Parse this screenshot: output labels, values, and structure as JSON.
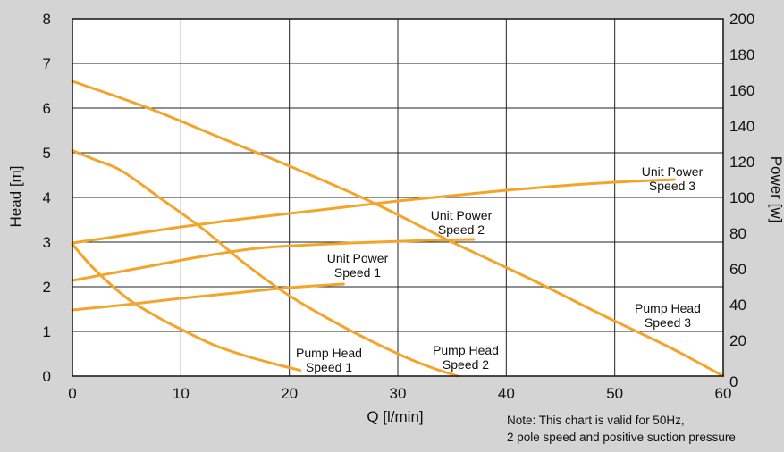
{
  "chart_data": {
    "type": "line",
    "xlabel": "Q [l/min]",
    "ylabel": "Head [m]",
    "y2label": "Power [w]",
    "xlim": [
      0,
      60
    ],
    "ylim": [
      0,
      8
    ],
    "y2lim": [
      0,
      200
    ],
    "x_ticks": [
      "0",
      "10",
      "20",
      "30",
      "40",
      "50",
      "60"
    ],
    "y_ticks": [
      "0",
      "1",
      "2",
      "3",
      "4",
      "5",
      "6",
      "7",
      "8"
    ],
    "y2_ticks": [
      "0",
      "20",
      "40",
      "60",
      "80",
      "100",
      "120",
      "140",
      "160",
      "180",
      "200"
    ],
    "grid": true,
    "line_color": "#f4a42b",
    "plot_background": "#ffffff",
    "series": [
      {
        "axis": "left",
        "label_lines": [
          "Pump Head",
          "Speed 1"
        ],
        "x": [
          0,
          2,
          5,
          8,
          10,
          13,
          16,
          19,
          21
        ],
        "y": [
          2.95,
          2.4,
          1.75,
          1.3,
          1.05,
          0.7,
          0.45,
          0.25,
          0.13
        ]
      },
      {
        "axis": "left",
        "label_lines": [
          "Pump Head",
          "Speed 2"
        ],
        "x": [
          0,
          2,
          4.5,
          8,
          12,
          16,
          20,
          25,
          30,
          33,
          35.5
        ],
        "y": [
          5.05,
          4.85,
          4.6,
          4.0,
          3.3,
          2.5,
          1.8,
          1.1,
          0.5,
          0.2,
          0.0
        ]
      },
      {
        "axis": "left",
        "label_lines": [
          "Pump Head",
          "Speed 3"
        ],
        "x": [
          0,
          7,
          14,
          21,
          28,
          35,
          42,
          49,
          55,
          60
        ],
        "y": [
          6.6,
          6.0,
          5.3,
          4.6,
          3.85,
          3.0,
          2.2,
          1.35,
          0.65,
          0.0
        ]
      },
      {
        "axis": "right",
        "label_lines": [
          "Unit Power",
          "Speed 1"
        ],
        "x": [
          0,
          5,
          10,
          15,
          20,
          25
        ],
        "y": [
          37,
          40,
          43.5,
          46.5,
          49.5,
          51.5
        ]
      },
      {
        "axis": "right",
        "label_lines": [
          "Unit Power",
          "Speed 2"
        ],
        "x": [
          0,
          4,
          8,
          12,
          17,
          22,
          28,
          33,
          37
        ],
        "y": [
          53.5,
          58,
          62.5,
          67,
          71.5,
          73.5,
          75,
          76,
          76.5
        ]
      },
      {
        "axis": "right",
        "label_lines": [
          "Unit Power",
          "Speed 3"
        ],
        "x": [
          0,
          5,
          10,
          15,
          20,
          25,
          30,
          35,
          40,
          45,
          50,
          55.5
        ],
        "y": [
          74.5,
          79,
          83.5,
          87.5,
          91,
          94.5,
          98,
          101,
          104,
          106.5,
          108.5,
          110
        ]
      }
    ],
    "note_lines": [
      "Note: This chart is valid for 50Hz,",
      "2 pole speed and positive suction pressure"
    ]
  }
}
